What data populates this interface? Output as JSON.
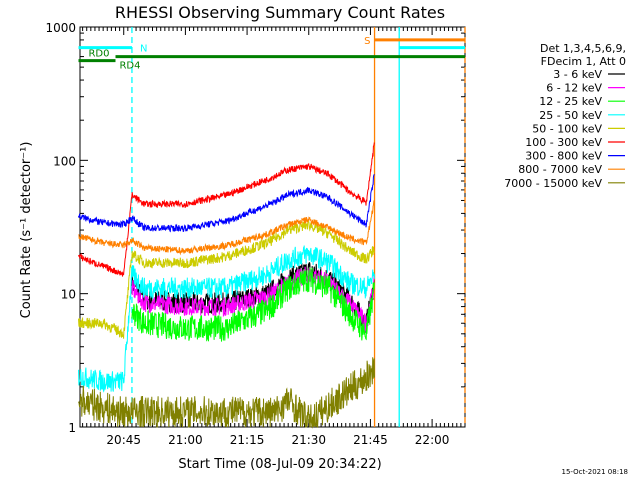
{
  "chart_data": {
    "type": "line",
    "title": "RHESSI Observing Summary Count Rates",
    "xlabel": "Start Time (08-Jul-09 20:34:22)",
    "ylabel": "Count Rate (s⁻¹ detector⁻¹)",
    "yscale": "log",
    "ylim": [
      1,
      1000
    ],
    "xlim": [
      "20:34:22",
      "22:08"
    ],
    "x_ticks": [
      "20:45",
      "21:00",
      "21:15",
      "21:30",
      "21:45",
      "22:00"
    ],
    "y_ticks": [
      "1",
      "10",
      "100",
      "1000"
    ],
    "legend_header": [
      "Det 1,3,4,5,6,9,",
      "FDecim 1, Att 0"
    ],
    "legend_position": "right",
    "series": [
      {
        "name": "3 - 6 keV",
        "color": "#000000",
        "x": [
          "20:47",
          "20:50",
          "21:00",
          "21:10",
          "21:20",
          "21:25",
          "21:30",
          "21:35",
          "21:40",
          "21:44",
          "21:46"
        ],
        "values": [
          12,
          9,
          8.5,
          8.5,
          10,
          13,
          15,
          13,
          9,
          6,
          12
        ]
      },
      {
        "name": "6 - 12 keV",
        "color": "#ff00ff",
        "x": [
          "20:47",
          "20:50",
          "21:00",
          "21:10",
          "21:20",
          "21:25",
          "21:30",
          "21:35",
          "21:40",
          "21:44",
          "21:46"
        ],
        "values": [
          11,
          8.5,
          8,
          8,
          9.5,
          12,
          14,
          12,
          8.5,
          6,
          12
        ]
      },
      {
        "name": "12 - 25 keV",
        "color": "#00ff00",
        "x": [
          "20:47",
          "20:50",
          "21:00",
          "21:10",
          "21:20",
          "21:25",
          "21:30",
          "21:35",
          "21:40",
          "21:44",
          "21:46"
        ],
        "values": [
          7.5,
          6,
          5.5,
          5.5,
          7.5,
          11,
          13,
          11,
          7,
          5,
          11
        ]
      },
      {
        "name": "25 - 50 keV",
        "color": "#00ffff",
        "x": [
          "20:34",
          "20:40",
          "20:45",
          "20:47",
          "20:50",
          "21:00",
          "21:10",
          "21:20",
          "21:25",
          "21:30",
          "21:35",
          "21:40",
          "21:44",
          "21:46"
        ],
        "values": [
          2.4,
          2.2,
          2.2,
          14,
          11,
          11,
          11,
          14,
          18,
          20,
          17,
          12,
          11,
          14
        ]
      },
      {
        "name": "50 - 100 keV",
        "color": "#cccc00",
        "x": [
          "20:34",
          "20:40",
          "20:45",
          "20:47",
          "20:50",
          "21:00",
          "21:10",
          "21:20",
          "21:25",
          "21:30",
          "21:35",
          "21:40",
          "21:44",
          "21:46"
        ],
        "values": [
          6,
          6,
          5,
          20,
          17,
          17,
          19,
          24,
          30,
          33,
          28,
          21,
          18,
          22
        ]
      },
      {
        "name": "100 - 300 keV",
        "color": "#ff0000",
        "x": [
          "20:34",
          "20:40",
          "20:45",
          "20:47",
          "20:50",
          "21:00",
          "21:10",
          "21:20",
          "21:25",
          "21:30",
          "21:35",
          "21:40",
          "21:44",
          "21:46"
        ],
        "values": [
          19,
          16,
          14,
          55,
          47,
          47,
          55,
          72,
          85,
          90,
          78,
          58,
          48,
          140
        ]
      },
      {
        "name": "300 - 800 keV",
        "color": "#0000ff",
        "x": [
          "20:34",
          "20:40",
          "20:45",
          "20:47",
          "20:50",
          "21:00",
          "21:10",
          "21:20",
          "21:25",
          "21:30",
          "21:35",
          "21:40",
          "21:44",
          "21:46"
        ],
        "values": [
          38,
          34,
          33,
          37,
          31,
          31,
          35,
          46,
          55,
          60,
          52,
          40,
          33,
          80
        ]
      },
      {
        "name": "800 - 7000 keV",
        "color": "#ff8000",
        "x": [
          "20:34",
          "20:40",
          "20:45",
          "20:47",
          "20:50",
          "21:00",
          "21:10",
          "21:20",
          "21:25",
          "21:30",
          "21:35",
          "21:40",
          "21:44",
          "21:46"
        ],
        "values": [
          27,
          24,
          23,
          25,
          22,
          21,
          23,
          28,
          33,
          36,
          31,
          26,
          24,
          50
        ]
      },
      {
        "name": "7000 - 15000 keV",
        "color": "#808000",
        "x": [
          "20:34",
          "20:40",
          "20:44",
          "21:20",
          "21:22",
          "21:25",
          "21:30",
          "21:45",
          "21:46"
        ],
        "values": [
          1.6,
          1.4,
          1.3,
          1.3,
          1.3,
          1.6,
          1.1,
          2.5,
          3
        ]
      }
    ],
    "state_bars": [
      {
        "label": "N",
        "color": "#00ffff",
        "level": 700,
        "x": [
          "20:34",
          "20:47"
        ]
      },
      {
        "label": "",
        "color": "#00ffff",
        "level": 700,
        "x": [
          "21:52",
          "22:08"
        ]
      },
      {
        "label": "S",
        "color": "#ff8000",
        "level": 800,
        "x": [
          "21:46",
          "22:08"
        ]
      },
      {
        "label": "RD0",
        "color": "#008000",
        "level": 560,
        "x": [
          "20:34",
          "20:43"
        ]
      },
      {
        "label": "RD4",
        "color": "#008000",
        "level": 600,
        "x": [
          "20:43",
          "22:08"
        ]
      }
    ],
    "vertical_markers": [
      {
        "x": "20:47",
        "color": "#00ffff",
        "style": "dashed"
      },
      {
        "x": "21:46",
        "color": "#ff8000",
        "style": "solid"
      },
      {
        "x": "21:52",
        "color": "#00ffff",
        "style": "solid"
      },
      {
        "x": "22:08",
        "color": "#ff8000",
        "style": "dashed"
      }
    ]
  },
  "footer_date": "15-Oct-2021 08:18"
}
